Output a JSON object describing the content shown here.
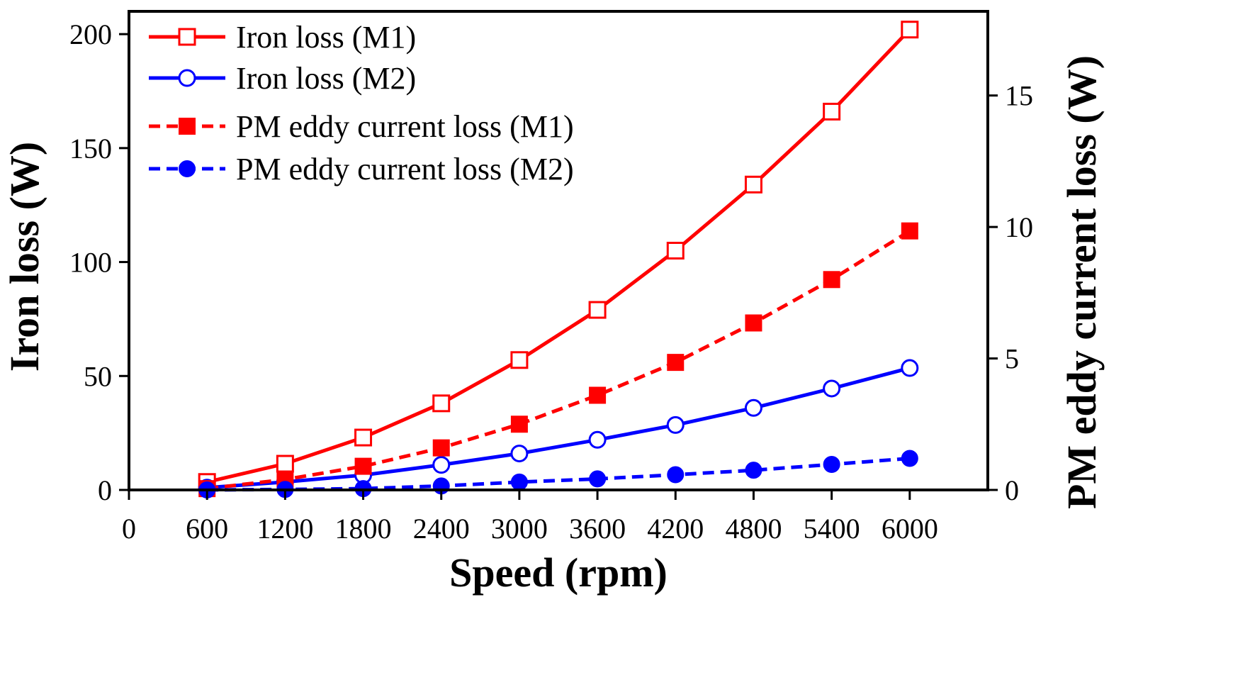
{
  "chart_data": {
    "type": "line",
    "title": "",
    "xlabel": "Speed (rpm)",
    "ylabel": "Iron loss (W)",
    "y2label": "PM eddy current loss (W)",
    "xlim": [
      0,
      6600
    ],
    "ylim": [
      0,
      210
    ],
    "y2lim": [
      0,
      18.2
    ],
    "x_ticks": [
      0,
      600,
      1200,
      1800,
      2400,
      3000,
      3600,
      4200,
      4800,
      5400,
      6000
    ],
    "x_tick_labels": [
      "0",
      "600",
      "1200",
      "1800",
      "2400",
      "3000",
      "3600",
      "4200",
      "4800",
      "5400",
      "6000"
    ],
    "y_ticks": [
      0,
      50,
      100,
      150,
      200
    ],
    "y_tick_labels": [
      "0",
      "50",
      "100",
      "150",
      "200"
    ],
    "y2_ticks": [
      0,
      5,
      10,
      15
    ],
    "y2_tick_labels": [
      "0",
      "5",
      "10",
      "15"
    ],
    "legend_position": "top-left",
    "grid": false,
    "x": [
      600,
      1200,
      1800,
      2400,
      3000,
      3600,
      4200,
      4800,
      5400,
      6000
    ],
    "series": [
      {
        "name": "Iron loss (M1)",
        "axis": "left",
        "color": "#ff0000",
        "line_style": "solid",
        "marker": "open-square",
        "values": [
          3.5,
          11.5,
          23,
          38,
          57,
          79,
          105,
          134,
          166,
          202
        ]
      },
      {
        "name": "Iron loss (M2)",
        "axis": "left",
        "color": "#0000ff",
        "line_style": "solid",
        "marker": "open-circle",
        "values": [
          1,
          3.5,
          6.5,
          11,
          16,
          22,
          28.5,
          36,
          44.5,
          53.5
        ]
      },
      {
        "name": "PM eddy current loss (M1)",
        "axis": "right",
        "color": "#ff0000",
        "line_style": "dashed",
        "marker": "filled-square",
        "values": [
          0.05,
          0.4,
          0.9,
          1.6,
          2.5,
          3.6,
          4.85,
          6.35,
          8.0,
          9.85
        ]
      },
      {
        "name": "PM eddy current loss (M2)",
        "axis": "right",
        "color": "#0000ff",
        "line_style": "dashed",
        "marker": "filled-circle",
        "values": [
          0.0,
          0.02,
          0.05,
          0.15,
          0.3,
          0.42,
          0.58,
          0.75,
          0.97,
          1.2
        ]
      }
    ]
  }
}
